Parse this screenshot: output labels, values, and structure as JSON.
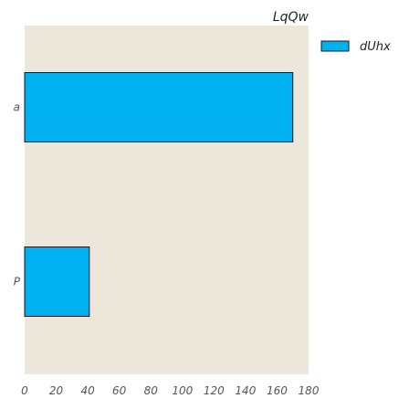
{
  "chart_data": {
    "type": "bar",
    "orientation": "horizontal",
    "title": "LqQw",
    "categories": [
      "a",
      "P"
    ],
    "series": [
      {
        "name": "dUhx",
        "values": [
          170,
          41
        ],
        "color": "#00B0F0"
      }
    ],
    "xlim": [
      0,
      180
    ],
    "xticks": [
      0,
      20,
      40,
      60,
      80,
      100,
      120,
      140,
      160,
      180
    ],
    "xlabel": "",
    "ylabel": "",
    "grid": false,
    "legend": "top-right",
    "plot_background": "#EDE7DB",
    "bar_edge_color": "#1A1A1A"
  }
}
